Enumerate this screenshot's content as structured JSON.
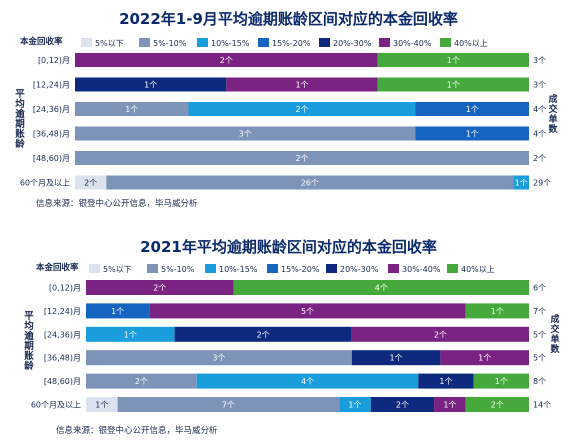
{
  "colors": {
    "5%以下": "#dde3ee",
    "5%-10%": "#7d93b8",
    "10%-15%": "#1a9ddc",
    "15%-20%": "#1565c0",
    "20%-30%": "#0d2a7e",
    "30%-40%": "#7b2382",
    "40%以上": "#46a93b",
    "axis_text": "#1a2a50",
    "title": "#0b2a6b"
  },
  "chart_data": [
    {
      "type": "bar",
      "orientation": "horizontal",
      "stacked": true,
      "title": "2022年1-9月平均逾期账龄区间对应的本金回收率",
      "legend_title": "本金回收率",
      "legend": [
        "5%以下",
        "5%-10%",
        "10%-15%",
        "15%-20%",
        "20%-30%",
        "30%-40%",
        "40%以上"
      ],
      "ylabel": "平均逾期账龄",
      "right_label": "成交单数",
      "categories": [
        "[0,12)月",
        "[12,24)月",
        "[24,36)月",
        "[36,48)月",
        "[48,60)月",
        "60个月及以上"
      ],
      "rows": [
        {
          "total": "3个",
          "segments": [
            {
              "bin": "30%-40%",
              "value": 2,
              "label": "2个"
            },
            {
              "bin": "40%以上",
              "value": 1,
              "label": "1个"
            }
          ]
        },
        {
          "total": "3个",
          "segments": [
            {
              "bin": "20%-30%",
              "value": 1,
              "label": "1个"
            },
            {
              "bin": "30%-40%",
              "value": 1,
              "label": "1个"
            },
            {
              "bin": "40%以上",
              "value": 1,
              "label": "1个"
            }
          ]
        },
        {
          "total": "4个",
          "segments": [
            {
              "bin": "5%-10%",
              "value": 1,
              "label": "1个"
            },
            {
              "bin": "10%-15%",
              "value": 2,
              "label": "2个"
            },
            {
              "bin": "15%-20%",
              "value": 1,
              "label": "1个"
            }
          ]
        },
        {
          "total": "4个",
          "segments": [
            {
              "bin": "5%-10%",
              "value": 3,
              "label": "3个"
            },
            {
              "bin": "15%-20%",
              "value": 1,
              "label": "1个"
            }
          ]
        },
        {
          "total": "2个",
          "segments": [
            {
              "bin": "5%-10%",
              "value": 2,
              "label": "2个"
            }
          ]
        },
        {
          "total": "29个",
          "segments": [
            {
              "bin": "5%以下",
              "value": 2,
              "label": "2个"
            },
            {
              "bin": "5%-10%",
              "value": 26,
              "label": "26个"
            },
            {
              "bin": "10%-15%",
              "value": 1,
              "label": "1个"
            }
          ]
        }
      ],
      "source": "信息来源：银登中心公开信息，毕马威分析"
    },
    {
      "type": "bar",
      "orientation": "horizontal",
      "stacked": true,
      "title": "2021年平均逾期账龄区间对应的本金回收率",
      "legend_title": "本金回收率",
      "legend": [
        "5%以下",
        "5%-10%",
        "10%-15%",
        "15%-20%",
        "20%-30%",
        "30%-40%",
        "40%以上"
      ],
      "ylabel": "平均逾期账龄",
      "right_label": "成交单数",
      "categories": [
        "[0,12)月",
        "[12,24)月",
        "[24,36)月",
        "[36,48)月",
        "[48,60)月",
        "60个月及以上"
      ],
      "rows": [
        {
          "total": "6个",
          "segments": [
            {
              "bin": "30%-40%",
              "value": 2,
              "label": "2个"
            },
            {
              "bin": "40%以上",
              "value": 4,
              "label": "4个"
            }
          ]
        },
        {
          "total": "7个",
          "segments": [
            {
              "bin": "15%-20%",
              "value": 1,
              "label": "1个"
            },
            {
              "bin": "30%-40%",
              "value": 5,
              "label": "5个"
            },
            {
              "bin": "40%以上",
              "value": 1,
              "label": "1个"
            }
          ]
        },
        {
          "total": "5个",
          "segments": [
            {
              "bin": "10%-15%",
              "value": 1,
              "label": "1个"
            },
            {
              "bin": "20%-30%",
              "value": 2,
              "label": "2个"
            },
            {
              "bin": "30%-40%",
              "value": 2,
              "label": "2个"
            }
          ]
        },
        {
          "total": "5个",
          "segments": [
            {
              "bin": "5%-10%",
              "value": 3,
              "label": "3个"
            },
            {
              "bin": "20%-30%",
              "value": 1,
              "label": "1个"
            },
            {
              "bin": "30%-40%",
              "value": 1,
              "label": "1个"
            }
          ]
        },
        {
          "total": "8个",
          "segments": [
            {
              "bin": "5%-10%",
              "value": 2,
              "label": "2个"
            },
            {
              "bin": "10%-15%",
              "value": 4,
              "label": "4个"
            },
            {
              "bin": "20%-30%",
              "value": 1,
              "label": "1个"
            },
            {
              "bin": "40%以上",
              "value": 1,
              "label": "1个"
            }
          ]
        },
        {
          "total": "14个",
          "segments": [
            {
              "bin": "5%以下",
              "value": 1,
              "label": "1个"
            },
            {
              "bin": "5%-10%",
              "value": 7,
              "label": "7个"
            },
            {
              "bin": "10%-15%",
              "value": 1,
              "label": "1个"
            },
            {
              "bin": "20%-30%",
              "value": 2,
              "label": "2个"
            },
            {
              "bin": "30%-40%",
              "value": 1,
              "label": "1个"
            },
            {
              "bin": "40%以上",
              "value": 2,
              "label": "2个"
            }
          ]
        }
      ],
      "source": "信息来源：银登中心公开信息，毕马威分析"
    }
  ]
}
